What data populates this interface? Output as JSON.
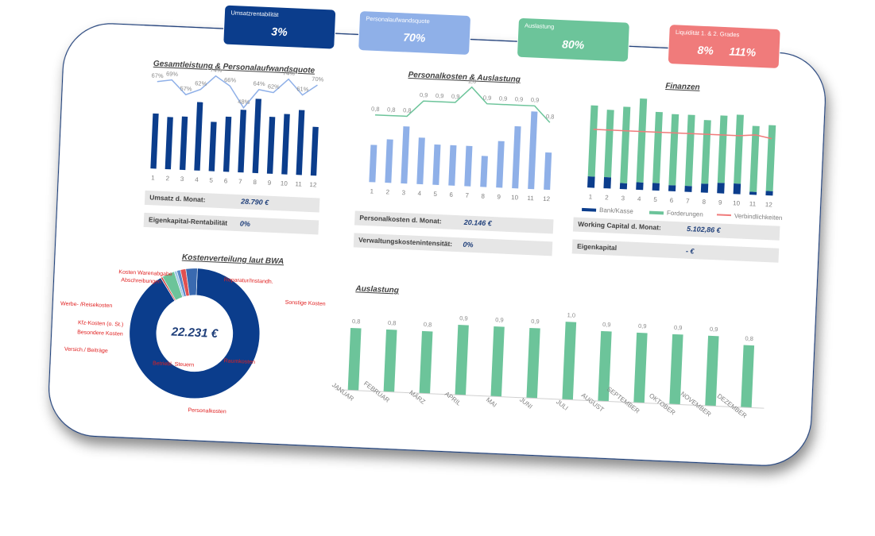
{
  "kpis": [
    {
      "title": "Umsatzrentabilität",
      "values": [
        "3%"
      ],
      "color": "#0b3d8c"
    },
    {
      "title": "Personalaufwandsquote",
      "values": [
        "70%"
      ],
      "color": "#8fb0e8"
    },
    {
      "title": "Auslastung",
      "values": [
        "80%"
      ],
      "color": "#6cc49a"
    },
    {
      "title": "Liquidität 1. & 2. Grades",
      "values": [
        "8%",
        "111%"
      ],
      "color": "#f07b7b"
    }
  ],
  "fields": [
    {
      "label": "Umsatz d. Monat:",
      "value": "28.790 €"
    },
    {
      "label": "Eigenkapital-Rentabilität",
      "value": "0%"
    },
    {
      "label": "Personalkosten d. Monat:",
      "value": "20.146 €"
    },
    {
      "label": "Verwaltungskostenintensität:",
      "value": "0%"
    },
    {
      "label": "Working Capital d. Monat:",
      "value": "5.102,86 €"
    },
    {
      "label": "Eigenkapital",
      "value": "-  €"
    }
  ],
  "donut_center": "22.231 €",
  "chart_data": [
    {
      "type": "combo",
      "title": "Gesamtleistung & Personalaufwandsquote",
      "categories": [
        "1",
        "2",
        "3",
        "4",
        "5",
        "6",
        "7",
        "8",
        "9",
        "10",
        "11",
        "12"
      ],
      "series": [
        {
          "kind": "bar",
          "color": "#0b3d8c",
          "values": [
            95,
            90,
            92,
            118,
            85,
            95,
            108,
            128,
            98,
            104,
            112,
            84
          ]
        },
        {
          "kind": "line",
          "color": "#8fb0e8",
          "values": [
            67,
            69,
            57,
            62,
            74,
            66,
            48,
            64,
            62,
            74,
            61,
            70
          ],
          "value_labels": [
            "67%",
            "69%",
            "57%",
            "62%",
            "74%",
            "66%",
            "48%",
            "64%",
            "62%",
            "74%",
            "61%",
            "70%"
          ]
        }
      ]
    },
    {
      "type": "combo",
      "title": "Personalkosten & Auslastung",
      "categories": [
        "1",
        "2",
        "3",
        "4",
        "5",
        "6",
        "7",
        "8",
        "9",
        "10",
        "11",
        "12"
      ],
      "series": [
        {
          "kind": "bar",
          "color": "#8fb0e8",
          "values": [
            60,
            70,
            92,
            75,
            65,
            65,
            65,
            50,
            75,
            100,
            125,
            60
          ]
        },
        {
          "kind": "line",
          "color": "#6cc49a",
          "values": [
            0.8,
            0.8,
            0.8,
            0.9,
            0.9,
            0.9,
            1.0,
            0.9,
            0.9,
            0.9,
            0.9,
            0.8
          ],
          "value_labels": [
            "0,8",
            "0,8",
            "0,8",
            "0,9",
            "0,9",
            "0,9",
            "1,0",
            "0,9",
            "0,9",
            "0,9",
            "0,9",
            "0,8"
          ]
        }
      ]
    },
    {
      "type": "stacked",
      "title": "Finanzen",
      "categories": [
        "1",
        "2",
        "3",
        "4",
        "5",
        "6",
        "7",
        "8",
        "9",
        "10",
        "11",
        "12"
      ],
      "series": [
        {
          "name": "Bank/Kasse",
          "kind": "bar",
          "color": "#0b3d8c",
          "values": [
            15,
            15,
            8,
            10,
            10,
            8,
            8,
            12,
            14,
            14,
            4,
            6
          ]
        },
        {
          "name": "Forderungen",
          "kind": "bar",
          "color": "#6cc49a",
          "values": [
            95,
            90,
            102,
            112,
            95,
            95,
            95,
            85,
            90,
            92,
            88,
            88
          ]
        },
        {
          "name": "Verbindlichkeiten",
          "kind": "line",
          "color": "#f07b7b",
          "values": [
            78,
            78,
            78,
            78,
            78,
            78,
            78,
            78,
            78,
            78,
            80,
            76
          ]
        }
      ]
    },
    {
      "type": "donut",
      "title": "Kostenverteilung laut BWA",
      "categories": [
        "Personalkosten",
        "Raumkosten",
        "Betriebl. Steuern",
        "Versich./ Beiträge",
        "Besondere Kosten",
        "Kfz-Kosten (o. St.)",
        "Werbe- /Reisekosten",
        "Kosten Warenabgabe",
        "Abschreibungen",
        "Reparatur/Instandh.",
        "Sonstige Kosten"
      ],
      "values": [
        20146,
        0,
        0,
        0,
        0,
        100,
        700,
        150,
        200,
        300,
        635
      ],
      "colors": [
        "#0b3d8c",
        "#1f5fb0",
        "#2f6fc0",
        "#4b7fc8",
        "#6a98d8",
        "#d04040",
        "#6cc49a",
        "#a0c8e8",
        "#5a8ac8",
        "#e05050",
        "#3a6ab0"
      ]
    },
    {
      "type": "bar",
      "title": "Auslastung",
      "categories": [
        "JANUAR",
        "FEBRUAR",
        "MÄRZ",
        "APRIL",
        "MAI",
        "JUNI",
        "JULI",
        "AUGUST",
        "SEPTEMBER",
        "OKTOBER",
        "NOVEMBER",
        "DEZEMBER"
      ],
      "values": [
        0.8,
        0.8,
        0.8,
        0.9,
        0.9,
        0.9,
        1.0,
        0.9,
        0.9,
        0.9,
        0.9,
        0.8
      ],
      "value_labels": [
        "0,8",
        "0,8",
        "0,8",
        "0,9",
        "0,9",
        "0,9",
        "1,0",
        "0,9",
        "0,9",
        "0,9",
        "0,9",
        "0,8"
      ],
      "color": "#6cc49a"
    }
  ]
}
